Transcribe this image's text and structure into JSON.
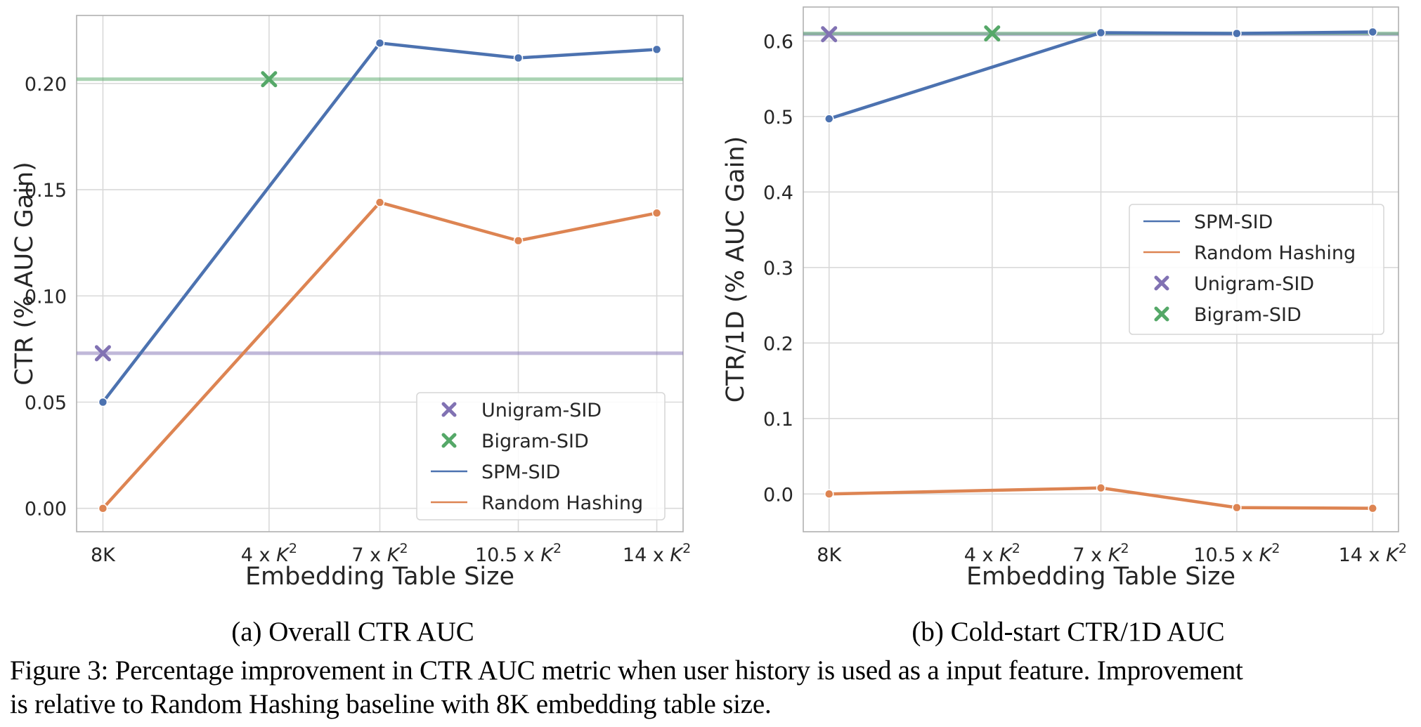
{
  "colors": {
    "spm": "#4c72b0",
    "random": "#dd8452",
    "unigram": "#8172b3",
    "bigram": "#55a868",
    "grid": "#d9d9d9",
    "spine": "#b0b0b0"
  },
  "chart_data": [
    {
      "type": "line",
      "subcaption": "(a) Overall CTR AUC",
      "xlabel": "Embedding Table Size",
      "ylabel": "CTR (% AUC Gain)",
      "x_ticks": [
        {
          "pos": 0,
          "text": "8K"
        },
        {
          "pos": 1.2,
          "text": "4 x K^2"
        },
        {
          "pos": 2,
          "text": "7 x K^2"
        },
        {
          "pos": 3,
          "text": "10.5 x K^2"
        },
        {
          "pos": 4,
          "text": "14 x K^2"
        }
      ],
      "xlim": [
        -0.19,
        4.19
      ],
      "ylim": [
        -0.011,
        0.232
      ],
      "y_ticks": [
        "0.00",
        "0.05",
        "0.10",
        "0.15",
        "0.20"
      ],
      "series": [
        {
          "name": "SPM-SID",
          "color_key": "spm",
          "x": [
            0,
            2,
            3,
            4
          ],
          "values": [
            0.05,
            0.219,
            0.212,
            0.216
          ]
        },
        {
          "name": "Random Hashing",
          "color_key": "random",
          "x": [
            0,
            2,
            3,
            4
          ],
          "values": [
            0.0,
            0.144,
            0.126,
            0.139
          ]
        }
      ],
      "reference_points": [
        {
          "name": "Unigram-SID",
          "color_key": "unigram",
          "x": 0,
          "value": 0.073
        },
        {
          "name": "Bigram-SID",
          "color_key": "bigram",
          "x": 1.2,
          "value": 0.202
        }
      ],
      "legend": {
        "placement": "lower right",
        "entries": [
          {
            "label": "Unigram-SID",
            "kind": "x",
            "color_key": "unigram"
          },
          {
            "label": "Bigram-SID",
            "kind": "x",
            "color_key": "bigram"
          },
          {
            "label": "SPM-SID",
            "kind": "line",
            "color_key": "spm"
          },
          {
            "label": "Random Hashing",
            "kind": "line",
            "color_key": "random"
          }
        ]
      }
    },
    {
      "type": "line",
      "subcaption": "(b) Cold-start CTR/1D AUC",
      "xlabel": "Embedding Table Size",
      "ylabel": "CTR/1D (% AUC Gain)",
      "x_ticks": [
        {
          "pos": 0,
          "text": "8K"
        },
        {
          "pos": 1.2,
          "text": "4 x K^2"
        },
        {
          "pos": 2,
          "text": "7 x K^2"
        },
        {
          "pos": 3,
          "text": "10.5 x K^2"
        },
        {
          "pos": 4,
          "text": "14 x K^2"
        }
      ],
      "xlim": [
        -0.19,
        4.19
      ],
      "ylim": [
        -0.05,
        0.645
      ],
      "y_ticks": [
        "0.0",
        "0.1",
        "0.2",
        "0.3",
        "0.4",
        "0.5",
        "0.6"
      ],
      "series": [
        {
          "name": "SPM-SID",
          "color_key": "spm",
          "x": [
            0,
            2,
            3,
            4
          ],
          "values": [
            0.497,
            0.611,
            0.61,
            0.612
          ]
        },
        {
          "name": "Random Hashing",
          "color_key": "random",
          "x": [
            0,
            2,
            3,
            4
          ],
          "values": [
            0.0,
            0.008,
            -0.018,
            -0.019
          ]
        }
      ],
      "reference_points": [
        {
          "name": "Unigram-SID",
          "color_key": "unigram",
          "x": 0,
          "value": 0.609
        },
        {
          "name": "Bigram-SID",
          "color_key": "bigram",
          "x": 1.2,
          "value": 0.61
        }
      ],
      "legend": {
        "placement": "center right",
        "entries": [
          {
            "label": "SPM-SID",
            "kind": "line",
            "color_key": "spm"
          },
          {
            "label": "Random Hashing",
            "kind": "line",
            "color_key": "random"
          },
          {
            "label": "Unigram-SID",
            "kind": "x",
            "color_key": "unigram"
          },
          {
            "label": "Bigram-SID",
            "kind": "x",
            "color_key": "bigram"
          }
        ]
      }
    }
  ],
  "caption": {
    "line1": "Figure 3: Percentage improvement in CTR AUC metric when user history is used as a input feature. Improvement",
    "line2": "is relative to Random Hashing baseline with 8K embedding table size."
  }
}
